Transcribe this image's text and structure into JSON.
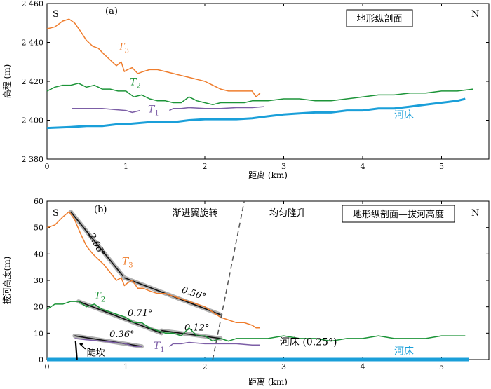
{
  "chart_data": [
    {
      "type": "line",
      "panel_label": "(a)",
      "box_title": "地形纵剖面",
      "side_labels": {
        "left": "S",
        "right": "N"
      },
      "xlabel": "距离 (km)",
      "ylabel": "高程 (m)",
      "xlim": [
        0,
        5.6
      ],
      "ylim": [
        2380,
        2460
      ],
      "xticks": [
        0,
        1,
        2,
        3,
        4,
        5
      ],
      "yticks": [
        2380,
        2400,
        2420,
        2440,
        2460
      ],
      "ytick_labels": [
        "2 380",
        "2 400",
        "2 420",
        "2 440",
        "2 460"
      ],
      "series": [
        {
          "name": "T3",
          "color": "#ef7d2d",
          "width": 1.5,
          "x": [
            0,
            0.1,
            0.2,
            0.28,
            0.35,
            0.42,
            0.5,
            0.58,
            0.65,
            0.72,
            0.8,
            0.88,
            0.94,
            0.98,
            1.02,
            1.08,
            1.15,
            1.22,
            1.3,
            1.4,
            1.5,
            1.6,
            1.7,
            1.8,
            1.9,
            2.0,
            2.1,
            2.2,
            2.3,
            2.4,
            2.5,
            2.6,
            2.65,
            2.7
          ],
          "y": [
            2447,
            2448,
            2451,
            2452,
            2450,
            2446,
            2441,
            2438,
            2437,
            2434,
            2431,
            2428,
            2430,
            2425,
            2426,
            2427,
            2424,
            2425,
            2426,
            2426,
            2425,
            2424,
            2423,
            2422,
            2421,
            2420,
            2418,
            2416,
            2415,
            2415,
            2415,
            2415,
            2412,
            2414
          ]
        },
        {
          "name": "T2",
          "color": "#1c9438",
          "width": 1.5,
          "x": [
            0,
            0.1,
            0.2,
            0.3,
            0.4,
            0.5,
            0.6,
            0.7,
            0.8,
            0.9,
            1.0,
            1.1,
            1.2,
            1.3,
            1.4,
            1.5,
            1.6,
            1.7,
            1.8,
            1.9,
            2.0,
            2.1,
            2.2,
            2.3,
            2.4,
            2.5,
            2.6,
            2.7,
            2.8,
            3.0,
            3.2,
            3.4,
            3.6,
            3.8,
            4.0,
            4.2,
            4.4,
            4.6,
            4.8,
            5.0,
            5.2,
            5.4
          ],
          "y": [
            2415,
            2417,
            2418,
            2418,
            2419,
            2417,
            2418,
            2416,
            2416,
            2415,
            2415,
            2412,
            2413,
            2411,
            2410,
            2410,
            2409,
            2409,
            2412,
            2410,
            2409,
            2408,
            2409,
            2409,
            2409,
            2409,
            2410,
            2410,
            2410,
            2411,
            2411,
            2410,
            2410,
            2411,
            2412,
            2413,
            2413,
            2414,
            2414,
            2415,
            2415,
            2416
          ]
        },
        {
          "name": "T1a",
          "color": "#7c5ea6",
          "width": 1.5,
          "x": [
            0.32,
            0.5,
            0.7,
            0.85,
            1.0,
            1.08,
            1.18
          ],
          "y": [
            2406,
            2406,
            2406,
            2405.5,
            2405,
            2404,
            2405
          ]
        },
        {
          "name": "T1b",
          "color": "#7c5ea6",
          "width": 1.5,
          "x": [
            1.55,
            1.6,
            1.7,
            1.8,
            2.0,
            2.2,
            2.4,
            2.6,
            2.75
          ],
          "y": [
            2405,
            2406,
            2406,
            2406.5,
            2406,
            2406,
            2406.5,
            2406.5,
            2407
          ]
        },
        {
          "name": "河床",
          "color": "#1a9fd9",
          "width": 3,
          "x": [
            0,
            0.3,
            0.5,
            0.7,
            0.9,
            1.0,
            1.3,
            1.6,
            1.8,
            2.0,
            2.4,
            2.6,
            2.8,
            3.0,
            3.2,
            3.4,
            3.6,
            3.8,
            4.0,
            4.2,
            4.4,
            4.6,
            4.8,
            5.0,
            5.2,
            5.3
          ],
          "y": [
            2396,
            2396.5,
            2397,
            2397,
            2398,
            2398,
            2399,
            2399,
            2400,
            2400.5,
            2400.5,
            2401,
            2402,
            2403,
            2403.5,
            2404,
            2404,
            2405,
            2405,
            2406,
            2406,
            2407,
            2408,
            2409,
            2410,
            2411
          ]
        }
      ],
      "labels": [
        {
          "text": "T",
          "sub": "3",
          "color": "#ef7d2d",
          "x": 0.9,
          "y": 2436
        },
        {
          "text": "T",
          "sub": "2",
          "color": "#1c9438",
          "x": 1.05,
          "y": 2418
        },
        {
          "text": "T",
          "sub": "1",
          "color": "#7c5ea6",
          "x": 1.28,
          "y": 2404
        },
        {
          "text": "河床",
          "color": "#1a9fd9",
          "x": 4.4,
          "y": 2401
        }
      ]
    },
    {
      "type": "line",
      "panel_label": "(b)",
      "box_title": "地形纵剖面—拔河高度",
      "side_labels": {
        "left": "S",
        "right": "N"
      },
      "zone_labels": [
        "渐进翼旋转",
        "均匀隆升"
      ],
      "xlabel": "距离 (km)",
      "ylabel": "拔河高度(m)",
      "xlim": [
        0,
        5.6
      ],
      "ylim": [
        0,
        60
      ],
      "xticks": [
        0,
        1,
        2,
        3,
        4,
        5
      ],
      "yticks": [
        0,
        10,
        20,
        30,
        40,
        50,
        60
      ],
      "ytick_labels": [
        "0",
        "10",
        "20",
        "30",
        "40",
        "50",
        "60"
      ],
      "series": [
        {
          "name": "T3",
          "color": "#ef7d2d",
          "width": 1.5,
          "x": [
            0,
            0.1,
            0.2,
            0.28,
            0.35,
            0.42,
            0.5,
            0.58,
            0.65,
            0.72,
            0.8,
            0.88,
            0.94,
            0.98,
            1.02,
            1.08,
            1.15,
            1.22,
            1.3,
            1.4,
            1.5,
            1.6,
            1.7,
            1.8,
            1.9,
            2.0,
            2.1,
            2.2,
            2.3,
            2.4,
            2.5,
            2.6,
            2.65,
            2.7
          ],
          "y": [
            50,
            51,
            54,
            56,
            53,
            48,
            43,
            40,
            38,
            36,
            33,
            30,
            31,
            28,
            29,
            30,
            27,
            27,
            26,
            25,
            25,
            24,
            23,
            22,
            21,
            20,
            18,
            16,
            15,
            14,
            14,
            13,
            12,
            12
          ]
        },
        {
          "name": "T2",
          "color": "#1c9438",
          "width": 1.5,
          "x": [
            0,
            0.1,
            0.2,
            0.3,
            0.4,
            0.5,
            0.6,
            0.7,
            0.8,
            0.9,
            1.0,
            1.1,
            1.2,
            1.3,
            1.4,
            1.5,
            1.6,
            1.7,
            1.8,
            1.9,
            2.0,
            2.1,
            2.2,
            2.3,
            2.4,
            2.5,
            2.6,
            2.7,
            2.8,
            3.0,
            3.2,
            3.4,
            3.6,
            3.8,
            4.0,
            4.2,
            4.4,
            4.6,
            4.8,
            5.0,
            5.2,
            5.3
          ],
          "y": [
            19,
            21,
            21,
            22,
            22,
            20,
            21,
            19,
            18,
            17,
            16,
            14,
            14,
            12,
            11,
            10,
            10,
            9,
            12,
            9,
            9,
            7,
            8,
            7,
            8,
            8,
            8,
            8,
            8,
            9,
            8,
            8,
            7,
            8,
            8,
            9,
            8,
            8,
            8,
            9,
            9,
            9
          ]
        },
        {
          "name": "T1a",
          "color": "#7c5ea6",
          "width": 1.5,
          "x": [
            0.35,
            0.5,
            0.7,
            0.85,
            1.0,
            1.1,
            1.2
          ],
          "y": [
            8,
            7.5,
            7,
            6.5,
            6,
            5,
            5
          ]
        },
        {
          "name": "T1b",
          "color": "#7c5ea6",
          "width": 1.5,
          "x": [
            1.55,
            1.6,
            1.7,
            1.8,
            2.0,
            2.2,
            2.4,
            2.6,
            2.7
          ],
          "y": [
            5,
            6,
            6,
            6.5,
            6,
            6,
            6,
            5.5,
            5.5
          ]
        },
        {
          "name": "河床",
          "color": "#1a9fd9",
          "width": 5,
          "x": [
            0,
            5.35
          ],
          "y": [
            0,
            0
          ]
        }
      ],
      "fit_lines": [
        {
          "label": "2.06°",
          "x": [
            0.3,
            0.98
          ],
          "y": [
            56,
            31
          ],
          "label_x": 0.6,
          "label_y": 43,
          "rotate": 62
        },
        {
          "label": "0.56°",
          "x": [
            0.98,
            2.2
          ],
          "y": [
            31,
            17
          ],
          "label_x": 1.85,
          "label_y": 24,
          "rotate": 18
        },
        {
          "label": "0.71°",
          "x": [
            0.4,
            1.45
          ],
          "y": [
            22,
            10
          ],
          "label_x": 1.18,
          "label_y": 16.5,
          "rotate": 0
        },
        {
          "label": "0.12°",
          "x": [
            1.45,
            2.2
          ],
          "y": [
            11,
            8
          ],
          "label_x": 1.9,
          "label_y": 11,
          "rotate": 0
        },
        {
          "label": "0.36°",
          "x": [
            0.35,
            1.2
          ],
          "y": [
            9,
            5
          ],
          "label_x": 0.95,
          "label_y": 8.5,
          "rotate": 0
        }
      ],
      "divider": {
        "x": [
          2.1,
          2.5
        ],
        "y": [
          0,
          60
        ]
      },
      "labels": [
        {
          "text": "T",
          "sub": "3",
          "color": "#ef7d2d",
          "x": 0.95,
          "y": 36
        },
        {
          "text": "T",
          "sub": "2",
          "color": "#1c9438",
          "x": 0.6,
          "y": 23
        },
        {
          "text": "T",
          "sub": "1",
          "color": "#7c5ea6",
          "x": 1.35,
          "y": 4
        },
        {
          "text": "河床 (0.25°)",
          "color": "#000000",
          "x": 2.95,
          "y": 5.5
        },
        {
          "text": "河床",
          "color": "#1a9fd9",
          "x": 4.4,
          "y": 2
        }
      ],
      "scarp_label": "陡坎"
    }
  ]
}
